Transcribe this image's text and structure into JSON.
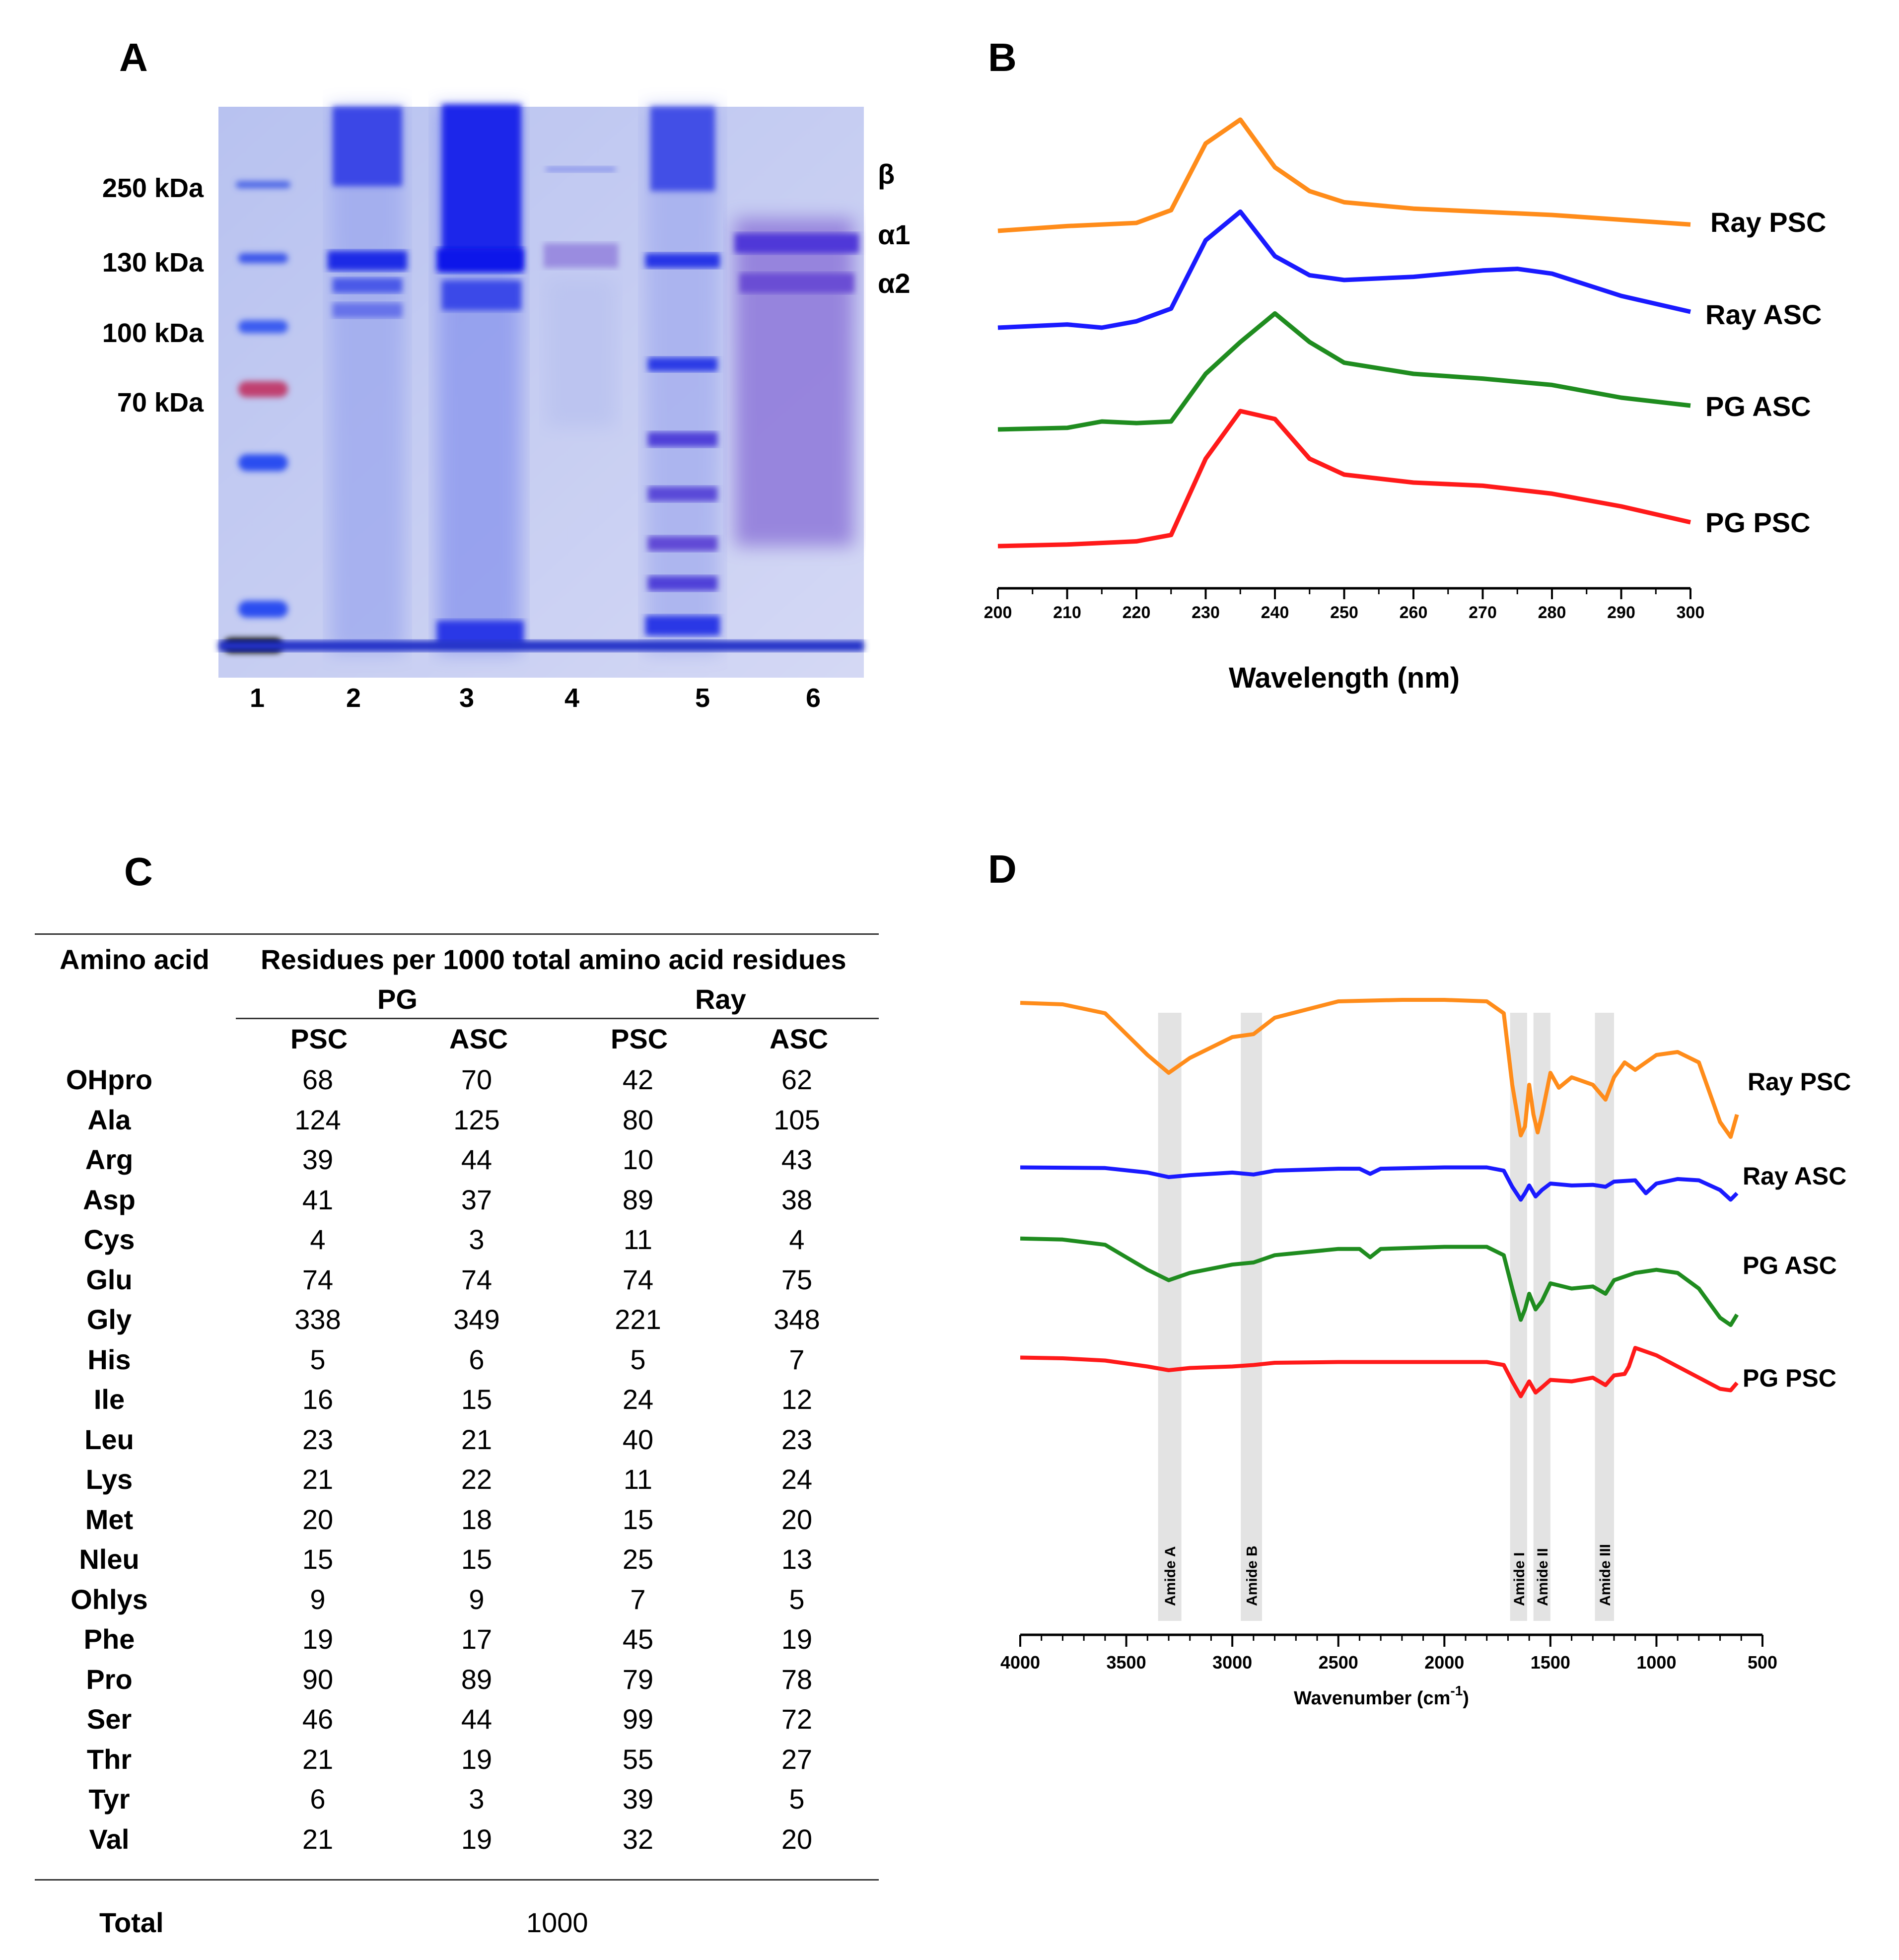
{
  "panels": {
    "a": "A",
    "b": "B",
    "c": "C",
    "d": "D"
  },
  "gel": {
    "markers": [
      "250 kDa",
      "130 kDa",
      "100 kDa",
      "70 kDa"
    ],
    "lanes": [
      "1",
      "2",
      "3",
      "4",
      "5",
      "6"
    ],
    "chains": [
      "β",
      "α1",
      "α2"
    ],
    "colors": {
      "background": "#c8cdf1",
      "band": "#2a36e8",
      "marker_red": "#c0407a"
    }
  },
  "chart_data": [
    {
      "type": "line",
      "panel": "B",
      "title": "",
      "xlabel": "Wavelength (nm)",
      "ylabel": "",
      "xlim": [
        200,
        300
      ],
      "x_ticks": [
        200,
        210,
        220,
        230,
        240,
        250,
        260,
        270,
        280,
        290,
        300
      ],
      "series": [
        {
          "name": "Ray PSC",
          "color": "#ff8c1a",
          "x": [
            200,
            210,
            220,
            225,
            230,
            235,
            240,
            245,
            250,
            260,
            270,
            280,
            290,
            300
          ],
          "y": [
            0.0,
            0.03,
            0.05,
            0.13,
            0.55,
            0.7,
            0.4,
            0.25,
            0.18,
            0.14,
            0.12,
            0.1,
            0.07,
            0.04
          ]
        },
        {
          "name": "Ray ASC",
          "color": "#1a1aff",
          "x": [
            200,
            210,
            215,
            220,
            225,
            230,
            235,
            240,
            245,
            250,
            260,
            270,
            275,
            280,
            290,
            300
          ],
          "y": [
            0.0,
            0.02,
            0.0,
            0.04,
            0.12,
            0.55,
            0.73,
            0.45,
            0.33,
            0.3,
            0.32,
            0.36,
            0.37,
            0.34,
            0.2,
            0.1
          ]
        },
        {
          "name": "PG ASC",
          "color": "#1f8c1f",
          "x": [
            200,
            210,
            215,
            220,
            225,
            230,
            235,
            240,
            245,
            250,
            260,
            270,
            280,
            290,
            300
          ],
          "y": [
            0.0,
            0.01,
            0.05,
            0.04,
            0.05,
            0.35,
            0.55,
            0.73,
            0.55,
            0.42,
            0.35,
            0.32,
            0.28,
            0.2,
            0.15
          ]
        },
        {
          "name": "PG PSC",
          "color": "#ff1a1a",
          "x": [
            200,
            210,
            220,
            225,
            230,
            235,
            240,
            245,
            250,
            260,
            270,
            280,
            290,
            300
          ],
          "y": [
            0.0,
            0.01,
            0.03,
            0.07,
            0.55,
            0.85,
            0.8,
            0.55,
            0.45,
            0.4,
            0.38,
            0.33,
            0.25,
            0.15
          ]
        }
      ]
    },
    {
      "type": "table",
      "panel": "C",
      "header_main": "Amino acid",
      "header_group": "Residues per 1000 total amino acid residues",
      "groups": [
        "PG",
        "Ray"
      ],
      "subcols": [
        "PSC",
        "ASC",
        "PSC",
        "ASC"
      ],
      "rows": [
        {
          "aa": "OHpro",
          "v": [
            "68",
            "70",
            "42",
            "62"
          ]
        },
        {
          "aa": "Ala",
          "v": [
            "124",
            "125",
            "80",
            "105"
          ]
        },
        {
          "aa": "Arg",
          "v": [
            "39",
            "44",
            "10",
            "43"
          ]
        },
        {
          "aa": "Asp",
          "v": [
            "41",
            "37",
            "89",
            "38"
          ]
        },
        {
          "aa": "Cys",
          "v": [
            "4",
            "3",
            "11",
            "4"
          ]
        },
        {
          "aa": "Glu",
          "v": [
            "74",
            "74",
            "74",
            "75"
          ]
        },
        {
          "aa": "Gly",
          "v": [
            "338",
            "349",
            "221",
            "348"
          ]
        },
        {
          "aa": "His",
          "v": [
            "5",
            "6",
            "5",
            "7"
          ]
        },
        {
          "aa": "Ile",
          "v": [
            "16",
            "15",
            "24",
            "12"
          ]
        },
        {
          "aa": "Leu",
          "v": [
            "23",
            "21",
            "40",
            "23"
          ]
        },
        {
          "aa": "Lys",
          "v": [
            "21",
            "22",
            "11",
            "24"
          ]
        },
        {
          "aa": "Met",
          "v": [
            "20",
            "18",
            "15",
            "20"
          ]
        },
        {
          "aa": "Nleu",
          "v": [
            "15",
            "15",
            "25",
            "13"
          ]
        },
        {
          "aa": "Ohlys",
          "v": [
            "9",
            "9",
            "7",
            "5"
          ]
        },
        {
          "aa": "Phe",
          "v": [
            "19",
            "17",
            "45",
            "19"
          ]
        },
        {
          "aa": "Pro",
          "v": [
            "90",
            "89",
            "79",
            "78"
          ]
        },
        {
          "aa": "Ser",
          "v": [
            "46",
            "44",
            "99",
            "72"
          ]
        },
        {
          "aa": "Thr",
          "v": [
            "21",
            "19",
            "55",
            "27"
          ]
        },
        {
          "aa": "Tyr",
          "v": [
            "6",
            "3",
            "39",
            "5"
          ]
        },
        {
          "aa": "Val",
          "v": [
            "21",
            "19",
            "32",
            "20"
          ]
        }
      ],
      "total_label": "Total",
      "total_value": "1000"
    },
    {
      "type": "line",
      "panel": "D",
      "title": "",
      "xlabel": "Wavenumber (cm",
      "xlabel_sup": "-1",
      "xlabel_end": ")",
      "ylabel": "",
      "xlim": [
        4000,
        500
      ],
      "x_reversed": true,
      "x_ticks": [
        4000,
        3500,
        3000,
        2500,
        2000,
        1500,
        1000,
        500
      ],
      "bands": [
        {
          "label": "Amide A",
          "from": 3350,
          "to": 3240
        },
        {
          "label": "Amide B",
          "from": 2960,
          "to": 2860
        },
        {
          "label": "Amide I",
          "from": 1690,
          "to": 1610
        },
        {
          "label": "Amide II",
          "from": 1580,
          "to": 1500
        },
        {
          "label": "Amide III",
          "from": 1290,
          "to": 1200
        }
      ],
      "series": [
        {
          "name": "Ray PSC",
          "color": "#ff8c1a",
          "x": [
            4000,
            3800,
            3600,
            3400,
            3300,
            3200,
            3100,
            3000,
            2900,
            2800,
            2500,
            2200,
            2000,
            1800,
            1720,
            1680,
            1640,
            1620,
            1600,
            1580,
            1560,
            1540,
            1500,
            1460,
            1400,
            1300,
            1240,
            1200,
            1150,
            1100,
            1000,
            900,
            800,
            700,
            650,
            620
          ],
          "y": [
            0.95,
            0.94,
            0.88,
            0.6,
            0.48,
            0.58,
            0.65,
            0.72,
            0.74,
            0.85,
            0.96,
            0.97,
            0.97,
            0.96,
            0.88,
            0.4,
            0.06,
            0.12,
            0.4,
            0.2,
            0.08,
            0.2,
            0.48,
            0.38,
            0.45,
            0.4,
            0.3,
            0.45,
            0.55,
            0.5,
            0.6,
            0.62,
            0.55,
            0.15,
            0.05,
            0.2
          ]
        },
        {
          "name": "Ray ASC",
          "color": "#1a1aff",
          "x": [
            4000,
            3600,
            3400,
            3300,
            3200,
            3000,
            2900,
            2800,
            2500,
            2400,
            2350,
            2300,
            2000,
            1800,
            1720,
            1680,
            1640,
            1620,
            1600,
            1570,
            1540,
            1500,
            1400,
            1300,
            1240,
            1200,
            1100,
            1050,
            1000,
            900,
            800,
            700,
            650,
            620
          ],
          "y": [
            0.9,
            0.89,
            0.82,
            0.75,
            0.78,
            0.82,
            0.79,
            0.85,
            0.88,
            0.88,
            0.8,
            0.88,
            0.9,
            0.9,
            0.85,
            0.6,
            0.4,
            0.5,
            0.62,
            0.45,
            0.55,
            0.65,
            0.62,
            0.63,
            0.6,
            0.68,
            0.7,
            0.5,
            0.65,
            0.72,
            0.7,
            0.55,
            0.4,
            0.5
          ]
        },
        {
          "name": "PG ASC",
          "color": "#1f8c1f",
          "x": [
            4000,
            3800,
            3600,
            3400,
            3300,
            3200,
            3000,
            2900,
            2800,
            2500,
            2400,
            2350,
            2300,
            2000,
            1800,
            1720,
            1680,
            1640,
            1620,
            1600,
            1570,
            1540,
            1500,
            1400,
            1300,
            1240,
            1200,
            1100,
            1000,
            900,
            800,
            700,
            650,
            620
          ],
          "y": [
            0.88,
            0.87,
            0.82,
            0.58,
            0.48,
            0.55,
            0.63,
            0.65,
            0.72,
            0.78,
            0.78,
            0.7,
            0.78,
            0.8,
            0.8,
            0.72,
            0.4,
            0.1,
            0.2,
            0.35,
            0.2,
            0.28,
            0.45,
            0.4,
            0.42,
            0.35,
            0.48,
            0.55,
            0.58,
            0.55,
            0.4,
            0.12,
            0.05,
            0.15
          ]
        },
        {
          "name": "PG PSC",
          "color": "#ff1a1a",
          "x": [
            4000,
            3800,
            3600,
            3400,
            3300,
            3200,
            3000,
            2900,
            2800,
            2500,
            2000,
            1800,
            1720,
            1680,
            1640,
            1620,
            1600,
            1570,
            1540,
            1500,
            1400,
            1300,
            1240,
            1200,
            1150,
            1130,
            1100,
            1000,
            900,
            800,
            700,
            650,
            620
          ],
          "y": [
            0.72,
            0.71,
            0.68,
            0.6,
            0.55,
            0.58,
            0.6,
            0.62,
            0.65,
            0.66,
            0.66,
            0.66,
            0.62,
            0.4,
            0.2,
            0.3,
            0.4,
            0.25,
            0.32,
            0.42,
            0.4,
            0.45,
            0.35,
            0.48,
            0.5,
            0.6,
            0.85,
            0.75,
            0.6,
            0.45,
            0.3,
            0.28,
            0.38
          ]
        }
      ]
    }
  ]
}
